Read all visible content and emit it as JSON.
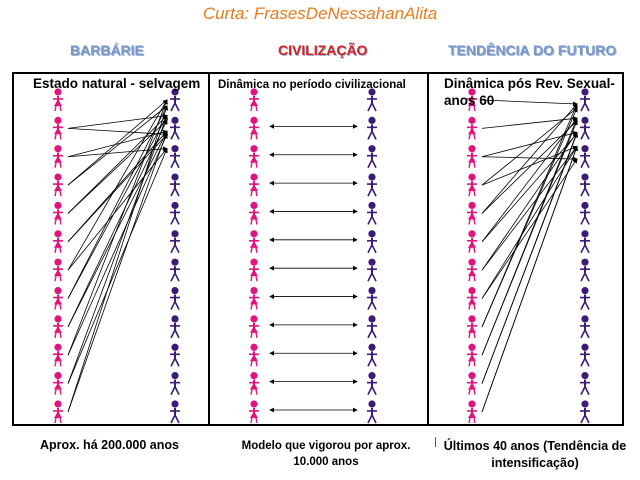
{
  "title": "Curta: FrasesDeNessahanAlita",
  "panels": [
    {
      "heading": "BARBÁRIE",
      "subtitle": "Estado natural - selvagem",
      "footer": "Aprox. há 200.000 anos"
    },
    {
      "heading": "CIVILIZAÇÃO",
      "subtitle": "Dinâmica  no período  civilizacional",
      "footer": "Modelo que vigorou por aprox. 10.000 anos"
    },
    {
      "heading": "TENDÊNCIA DO FUTURO",
      "subtitle": "Dinâmica pós Rev. Sexual- anos 60",
      "footer": "Últimos 40 anos (Tendência de intensificação)"
    }
  ],
  "colors": {
    "female": "#e0147f",
    "male": "#3c1a78",
    "title": "#e87b1e",
    "heading_red": "#d42020",
    "heading_blue": "#7896c8"
  },
  "icons": {
    "female": "female-figure-icon",
    "male": "male-figure-icon",
    "arrow": "arrow-icon"
  },
  "figures_per_column": 12
}
